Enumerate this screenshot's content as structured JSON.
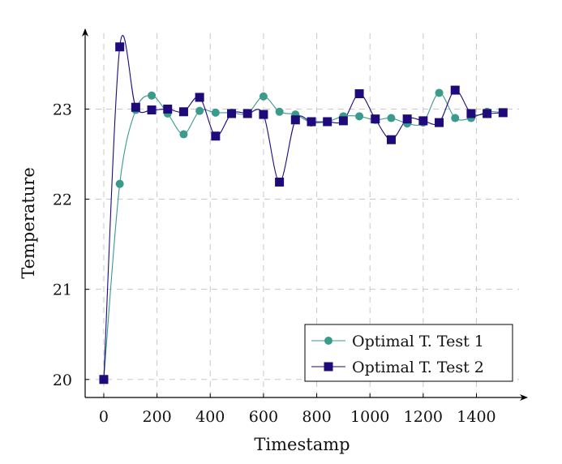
{
  "chart_data": {
    "type": "line",
    "xlabel": "Timestamp",
    "ylabel": "Temperature",
    "xlim": [
      -70,
      1560
    ],
    "ylim": [
      19.8,
      23.85
    ],
    "xticks": [
      0,
      200,
      400,
      600,
      800,
      1000,
      1200,
      1400
    ],
    "yticks": [
      20,
      21,
      22,
      23
    ],
    "grid": true,
    "legend_position": "bottom-right",
    "series": [
      {
        "name": "Optimal T. Test 1",
        "color": "#3a9a8c",
        "marker": "circle",
        "x": [
          0,
          60,
          120,
          180,
          240,
          300,
          360,
          420,
          480,
          540,
          600,
          660,
          720,
          780,
          840,
          900,
          960,
          1020,
          1080,
          1140,
          1200,
          1260,
          1320,
          1380,
          1440,
          1500
        ],
        "values": [
          20.0,
          22.17,
          22.99,
          23.15,
          22.95,
          22.72,
          22.98,
          22.96,
          22.96,
          22.95,
          23.14,
          22.97,
          22.94,
          22.85,
          22.86,
          22.92,
          22.92,
          22.88,
          22.9,
          22.84,
          22.85,
          23.18,
          22.9,
          22.9,
          22.97,
          22.96
        ]
      },
      {
        "name": "Optimal T. Test 2",
        "color": "#1e0a7a",
        "marker": "square",
        "x": [
          0,
          60,
          120,
          180,
          240,
          300,
          360,
          420,
          480,
          540,
          600,
          660,
          720,
          780,
          840,
          900,
          960,
          1020,
          1080,
          1140,
          1200,
          1260,
          1320,
          1380,
          1440,
          1500
        ],
        "values": [
          20.0,
          23.69,
          23.02,
          22.99,
          23.0,
          22.97,
          23.13,
          22.7,
          22.95,
          22.95,
          22.94,
          22.19,
          22.88,
          22.86,
          22.86,
          22.87,
          23.17,
          22.89,
          22.66,
          22.89,
          22.87,
          22.85,
          23.21,
          22.95,
          22.95,
          22.96
        ]
      }
    ]
  }
}
